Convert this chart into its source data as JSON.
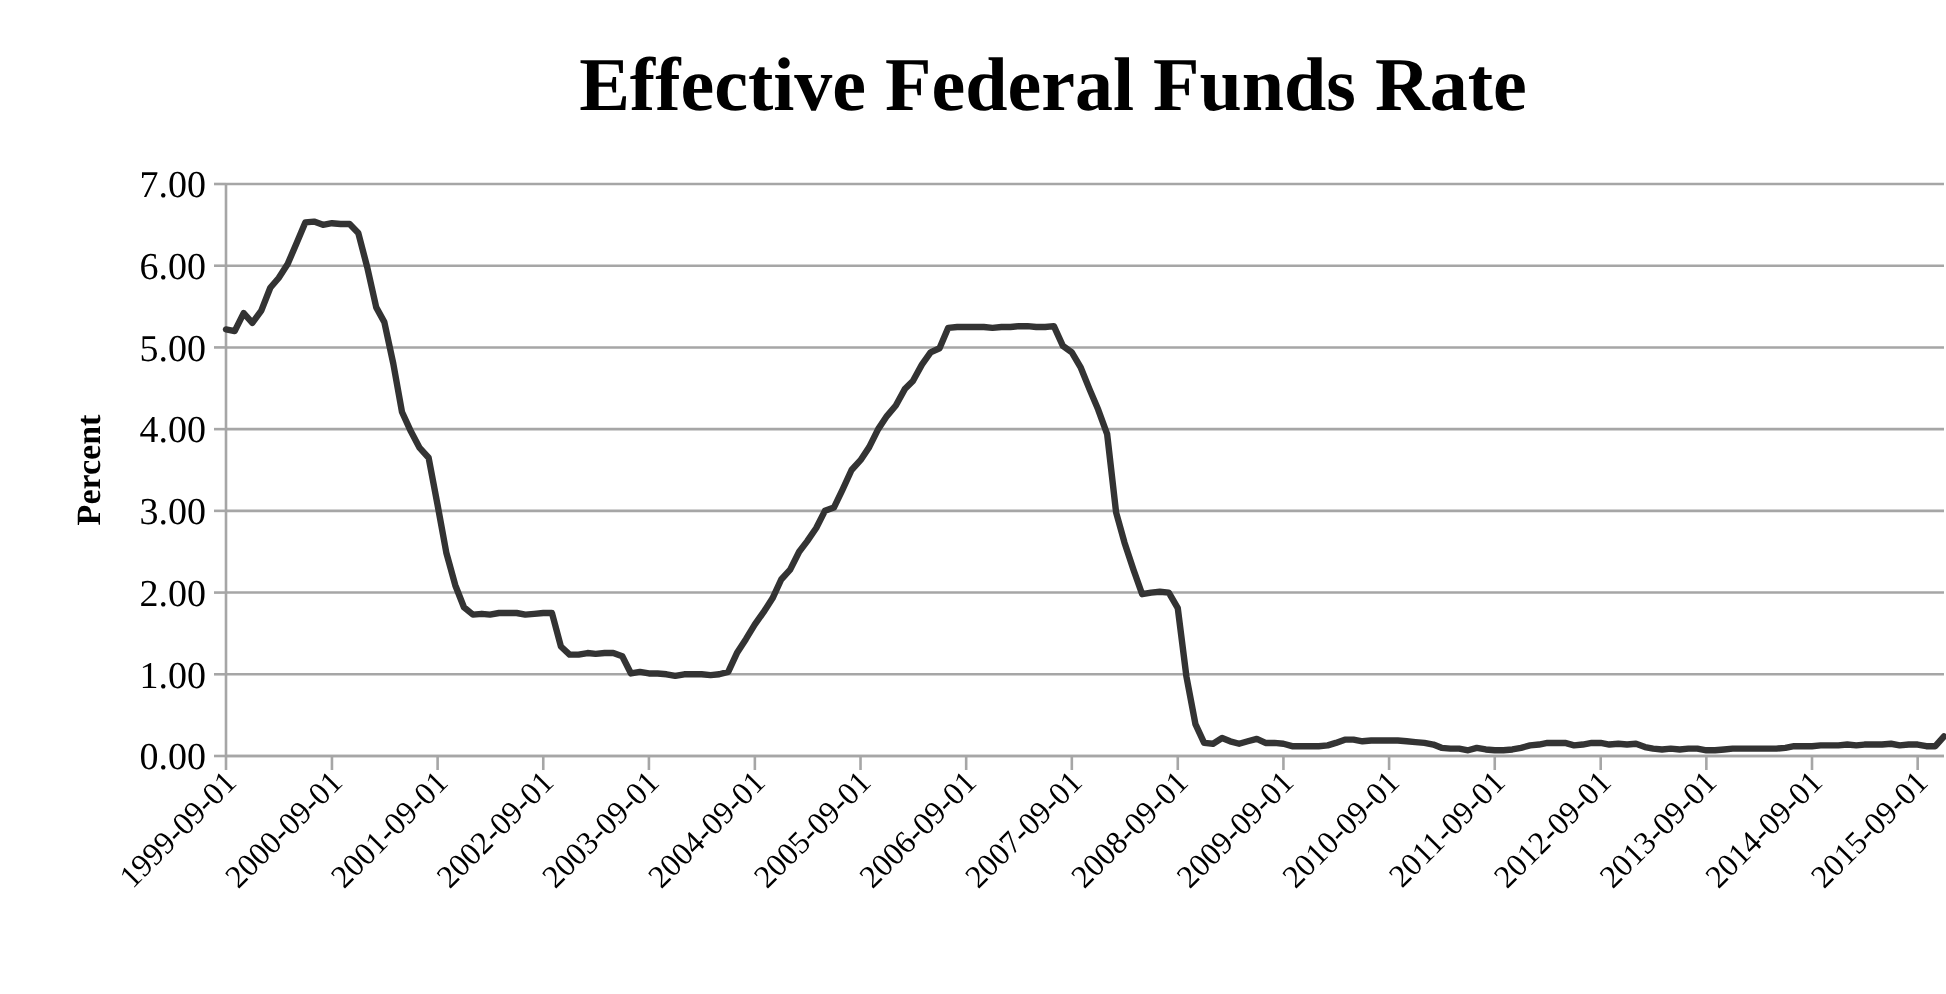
{
  "chart_data": {
    "type": "line",
    "title": "Effective Federal Funds Rate",
    "ylabel": "Percent",
    "x": [
      "1999-09",
      "1999-10",
      "1999-11",
      "1999-12",
      "2000-01",
      "2000-02",
      "2000-03",
      "2000-04",
      "2000-05",
      "2000-06",
      "2000-07",
      "2000-08",
      "2000-09",
      "2000-10",
      "2000-11",
      "2000-12",
      "2001-01",
      "2001-02",
      "2001-03",
      "2001-04",
      "2001-05",
      "2001-06",
      "2001-07",
      "2001-08",
      "2001-09",
      "2001-10",
      "2001-11",
      "2001-12",
      "2002-01",
      "2002-02",
      "2002-03",
      "2002-04",
      "2002-05",
      "2002-06",
      "2002-07",
      "2002-08",
      "2002-09",
      "2002-10",
      "2002-11",
      "2002-12",
      "2003-01",
      "2003-02",
      "2003-03",
      "2003-04",
      "2003-05",
      "2003-06",
      "2003-07",
      "2003-08",
      "2003-09",
      "2003-10",
      "2003-11",
      "2003-12",
      "2004-01",
      "2004-02",
      "2004-03",
      "2004-04",
      "2004-05",
      "2004-06",
      "2004-07",
      "2004-08",
      "2004-09",
      "2004-10",
      "2004-11",
      "2004-12",
      "2005-01",
      "2005-02",
      "2005-03",
      "2005-04",
      "2005-05",
      "2005-06",
      "2005-07",
      "2005-08",
      "2005-09",
      "2005-10",
      "2005-11",
      "2005-12",
      "2006-01",
      "2006-02",
      "2006-03",
      "2006-04",
      "2006-05",
      "2006-06",
      "2006-07",
      "2006-08",
      "2006-09",
      "2006-10",
      "2006-11",
      "2006-12",
      "2007-01",
      "2007-02",
      "2007-03",
      "2007-04",
      "2007-05",
      "2007-06",
      "2007-07",
      "2007-08",
      "2007-09",
      "2007-10",
      "2007-11",
      "2007-12",
      "2008-01",
      "2008-02",
      "2008-03",
      "2008-04",
      "2008-05",
      "2008-06",
      "2008-07",
      "2008-08",
      "2008-09",
      "2008-10",
      "2008-11",
      "2008-12",
      "2009-01",
      "2009-02",
      "2009-03",
      "2009-04",
      "2009-05",
      "2009-06",
      "2009-07",
      "2009-08",
      "2009-09",
      "2009-10",
      "2009-11",
      "2009-12",
      "2010-01",
      "2010-02",
      "2010-03",
      "2010-04",
      "2010-05",
      "2010-06",
      "2010-07",
      "2010-08",
      "2010-09",
      "2010-10",
      "2010-11",
      "2010-12",
      "2011-01",
      "2011-02",
      "2011-03",
      "2011-04",
      "2011-05",
      "2011-06",
      "2011-07",
      "2011-08",
      "2011-09",
      "2011-10",
      "2011-11",
      "2011-12",
      "2012-01",
      "2012-02",
      "2012-03",
      "2012-04",
      "2012-05",
      "2012-06",
      "2012-07",
      "2012-08",
      "2012-09",
      "2012-10",
      "2012-11",
      "2012-12",
      "2013-01",
      "2013-02",
      "2013-03",
      "2013-04",
      "2013-05",
      "2013-06",
      "2013-07",
      "2013-08",
      "2013-09",
      "2013-10",
      "2013-11",
      "2013-12",
      "2014-01",
      "2014-02",
      "2014-03",
      "2014-04",
      "2014-05",
      "2014-06",
      "2014-07",
      "2014-08",
      "2014-09",
      "2014-10",
      "2014-11",
      "2014-12",
      "2015-01",
      "2015-02",
      "2015-03",
      "2015-04",
      "2015-05",
      "2015-06",
      "2015-07",
      "2015-08",
      "2015-09",
      "2015-10",
      "2015-11",
      "2015-12"
    ],
    "series": [
      {
        "color": "#333333",
        "values": [
          5.22,
          5.2,
          5.42,
          5.3,
          5.45,
          5.73,
          5.85,
          6.02,
          6.27,
          6.53,
          6.54,
          6.5,
          6.52,
          6.51,
          6.51,
          6.4,
          5.98,
          5.49,
          5.31,
          4.8,
          4.21,
          3.97,
          3.77,
          3.65,
          3.07,
          2.49,
          2.09,
          1.82,
          1.73,
          1.74,
          1.73,
          1.75,
          1.75,
          1.75,
          1.73,
          1.74,
          1.75,
          1.75,
          1.34,
          1.24,
          1.24,
          1.26,
          1.25,
          1.26,
          1.26,
          1.22,
          1.01,
          1.03,
          1.01,
          1.01,
          1.0,
          0.98,
          1.0,
          1.0,
          1.0,
          0.99,
          1.0,
          1.03,
          1.26,
          1.43,
          1.61,
          1.76,
          1.93,
          2.16,
          2.28,
          2.5,
          2.63,
          2.79,
          3.0,
          3.04,
          3.26,
          3.5,
          3.62,
          3.78,
          4.0,
          4.16,
          4.29,
          4.49,
          4.59,
          4.79,
          4.94,
          4.99,
          5.24,
          5.25,
          5.25,
          5.25,
          5.25,
          5.24,
          5.25,
          5.25,
          5.26,
          5.26,
          5.25,
          5.25,
          5.26,
          5.02,
          4.94,
          4.76,
          4.49,
          4.24,
          3.94,
          2.98,
          2.61,
          2.28,
          1.98,
          2.0,
          2.01,
          2.0,
          1.81,
          0.97,
          0.39,
          0.16,
          0.15,
          0.22,
          0.18,
          0.15,
          0.18,
          0.21,
          0.16,
          0.16,
          0.15,
          0.12,
          0.12,
          0.12,
          0.12,
          0.13,
          0.16,
          0.2,
          0.2,
          0.18,
          0.19,
          0.19,
          0.19,
          0.19,
          0.18,
          0.17,
          0.16,
          0.14,
          0.1,
          0.09,
          0.09,
          0.07,
          0.1,
          0.08,
          0.07,
          0.07,
          0.08,
          0.1,
          0.13,
          0.14,
          0.16,
          0.16,
          0.16,
          0.13,
          0.14,
          0.16,
          0.16,
          0.14,
          0.15,
          0.14,
          0.15,
          0.11,
          0.09,
          0.08,
          0.09,
          0.08,
          0.09,
          0.09,
          0.07,
          0.07,
          0.08,
          0.09,
          0.09,
          0.09,
          0.09,
          0.09,
          0.09,
          0.1,
          0.12,
          0.12,
          0.12,
          0.13,
          0.13,
          0.13,
          0.14,
          0.13,
          0.14,
          0.14,
          0.14,
          0.15,
          0.13,
          0.14,
          0.14,
          0.12,
          0.12,
          0.24
        ]
      }
    ],
    "xlim": [
      "1999-09-01",
      "2015-12-01"
    ],
    "xticks": [
      "1999-09-01",
      "2000-09-01",
      "2001-09-01",
      "2002-09-01",
      "2003-09-01",
      "2004-09-01",
      "2005-09-01",
      "2006-09-01",
      "2007-09-01",
      "2008-09-01",
      "2009-09-01",
      "2010-09-01",
      "2011-09-01",
      "2012-09-01",
      "2013-09-01",
      "2014-09-01",
      "2015-09-01"
    ],
    "ylim": [
      0,
      7
    ],
    "yticks": [
      {
        "value": 0,
        "label": "0.00"
      },
      {
        "value": 1,
        "label": "1.00"
      },
      {
        "value": 2,
        "label": "2.00"
      },
      {
        "value": 3,
        "label": "3.00"
      },
      {
        "value": 4,
        "label": "4.00"
      },
      {
        "value": 5,
        "label": "5.00"
      },
      {
        "value": 6,
        "label": "6.00"
      },
      {
        "value": 7,
        "label": "7.00"
      }
    ],
    "grid": "y",
    "marker": "none",
    "line_style": "solid"
  }
}
